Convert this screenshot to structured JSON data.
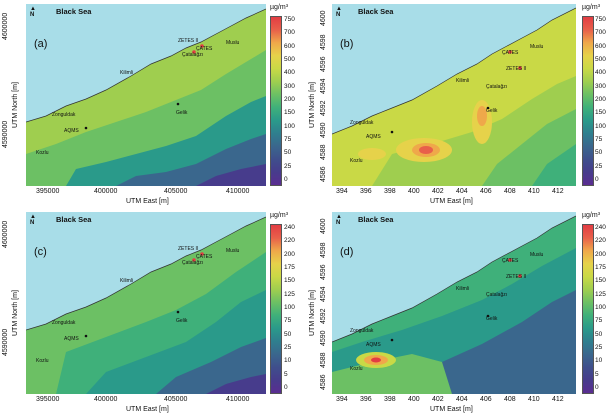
{
  "panels": [
    {
      "id": "a",
      "panel_label": "(a)",
      "sea_label": "Black Sea",
      "unit": "µg/m³",
      "x_title": "UTM East [m]",
      "y_title": "UTM North [m]",
      "x_ticks": [
        "395000",
        "400000",
        "405000",
        "410000"
      ],
      "y_ticks": [
        "4600000",
        "4590000"
      ],
      "colorbar_ticks": [
        "750",
        "700",
        "600",
        "500",
        "400",
        "300",
        "200",
        "150",
        "100",
        "75",
        "50",
        "25",
        "0"
      ],
      "places": [
        "Zonguldak",
        "Kilimli",
        "Çatalağzı",
        "ZETES II",
        "ÇATES",
        "Muslu",
        "Gelik",
        "AQMS",
        "Kozlu"
      ]
    },
    {
      "id": "b",
      "panel_label": "(b)",
      "sea_label": "Black Sea",
      "unit": "µg/m³",
      "x_title": "UTM East [m]",
      "y_title": "UTM North [m]",
      "x_ticks": [
        "394",
        "396",
        "398",
        "400",
        "402",
        "404",
        "406",
        "408",
        "410",
        "412"
      ],
      "y_ticks": [
        "4600",
        "4598",
        "4596",
        "4594",
        "4592",
        "4590",
        "4588",
        "4586"
      ],
      "colorbar_ticks": [
        "750",
        "700",
        "600",
        "500",
        "400",
        "300",
        "200",
        "150",
        "100",
        "75",
        "50",
        "25",
        "0"
      ],
      "places": [
        "Zonguldak",
        "Kilimli",
        "Çatalağzı",
        "ZETES II",
        "ÇATES",
        "Muslu",
        "Gelik",
        "AQMS",
        "Kozlu"
      ]
    },
    {
      "id": "c",
      "panel_label": "(c)",
      "sea_label": "Black Sea",
      "unit": "µg/m³",
      "x_title": "UTM East [m]",
      "y_title": "UTM North [m]",
      "x_ticks": [
        "395000",
        "400000",
        "405000",
        "410000"
      ],
      "y_ticks": [
        "4600000",
        "4590000"
      ],
      "colorbar_ticks": [
        "240",
        "220",
        "200",
        "175",
        "150",
        "125",
        "100",
        "75",
        "50",
        "25",
        "10",
        "5",
        "0"
      ],
      "places": [
        "Zonguldak",
        "Kilimli",
        "Çatalağzı",
        "ZETES II",
        "ÇATES",
        "Muslu",
        "Gelik",
        "AQMS",
        "Kozlu"
      ]
    },
    {
      "id": "d",
      "panel_label": "(d)",
      "sea_label": "Black Sea",
      "unit": "µg/m³",
      "x_title": "UTM East [m]",
      "y_title": "UTM North [m]",
      "x_ticks": [
        "394",
        "396",
        "398",
        "400",
        "402",
        "404",
        "406",
        "408",
        "410",
        "412"
      ],
      "y_ticks": [
        "4600",
        "4598",
        "4596",
        "4594",
        "4592",
        "4590",
        "4588",
        "4586"
      ],
      "colorbar_ticks": [
        "240",
        "220",
        "200",
        "175",
        "150",
        "125",
        "100",
        "75",
        "50",
        "25",
        "10",
        "5",
        "0"
      ],
      "places": [
        "Zonguldak",
        "Kilimli",
        "Çatalağzı",
        "ZETES II",
        "ÇATES",
        "Muslu",
        "Gelik",
        "AQMS",
        "Kozlu"
      ]
    }
  ],
  "north_symbol": "N",
  "colors": {
    "sea": "#a8dde8",
    "scale": [
      "#5a2d91",
      "#473c8c",
      "#3f4f8c",
      "#3a678d",
      "#2f7f8e",
      "#2a9a8a",
      "#3fb07a",
      "#6cc064",
      "#9fce4f",
      "#c9d946",
      "#e6d24a",
      "#efa84a",
      "#e8604a",
      "#e23d43"
    ]
  }
}
